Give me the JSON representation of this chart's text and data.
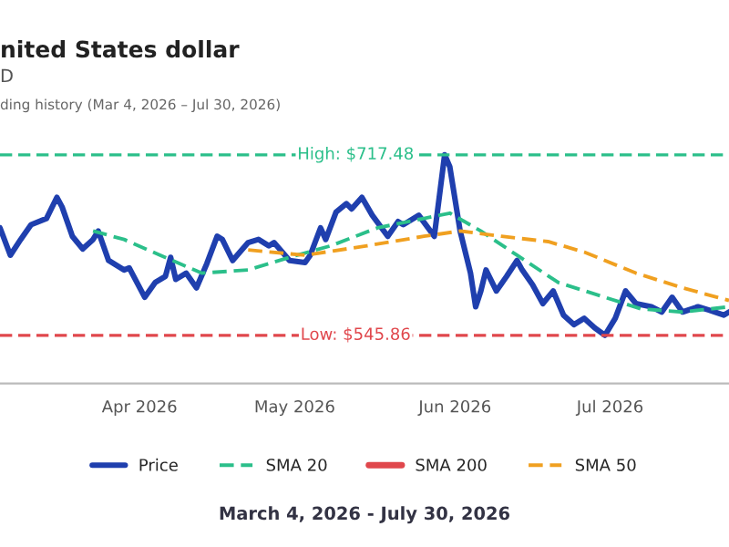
{
  "chart_data": {
    "type": "line",
    "title": "nited States dollar",
    "subtitle": "D",
    "annotations": [
      "ding history (Mar 4, 2026 – Jul 30, 2026)",
      "March 4, 2026 - July 30, 2026"
    ],
    "xlim": [
      "2026-03-05",
      "2026-07-24"
    ],
    "xticks": [
      {
        "value": "2026-04-01",
        "label": "Apr 2026"
      },
      {
        "value": "2026-05-01",
        "label": "May 2026"
      },
      {
        "value": "2026-06-01",
        "label": "Jun 2026"
      },
      {
        "value": "2026-07-01",
        "label": "Jul 2026"
      }
    ],
    "yticks": [
      {
        "value": 545.86,
        "label": "Low: $545.86"
      },
      {
        "value": 717.48,
        "label": "High: $717.48"
      }
    ],
    "ylim": [
      545.86,
      717.48
    ],
    "grid": false,
    "legend": "bottom",
    "line_style": "solid",
    "marker": "none",
    "ref_lines": [
      {
        "axis": "y",
        "value": 717.48,
        "color": "#2bbf8a",
        "line_style": "dashed"
      },
      {
        "axis": "y",
        "value": 545.86,
        "color": "#e0474c",
        "line_style": "dashed"
      }
    ],
    "series": [
      {
        "name": "Price",
        "color": "#1f3fae",
        "x": [
          "2026-03-05",
          "2026-03-07",
          "2026-03-09",
          "2026-03-11",
          "2026-03-14",
          "2026-03-16",
          "2026-03-17",
          "2026-03-19",
          "2026-03-21",
          "2026-03-23",
          "2026-03-24",
          "2026-03-26",
          "2026-03-29",
          "2026-03-30",
          "2026-04-02",
          "2026-04-04",
          "2026-04-06",
          "2026-04-07",
          "2026-04-08",
          "2026-04-10",
          "2026-04-12",
          "2026-04-14",
          "2026-04-16",
          "2026-04-17",
          "2026-04-19",
          "2026-04-22",
          "2026-04-24",
          "2026-04-26",
          "2026-04-27",
          "2026-04-30",
          "2026-05-03",
          "2026-05-04",
          "2026-05-06",
          "2026-05-07",
          "2026-05-09",
          "2026-05-11",
          "2026-05-12",
          "2026-05-14",
          "2026-05-16",
          "2026-05-19",
          "2026-05-21",
          "2026-05-22",
          "2026-05-25",
          "2026-05-28",
          "2026-05-30",
          "2026-05-31",
          "2026-06-02",
          "2026-06-04",
          "2026-06-05",
          "2026-06-06",
          "2026-06-07",
          "2026-06-09",
          "2026-06-11",
          "2026-06-13",
          "2026-06-14",
          "2026-06-16",
          "2026-06-18",
          "2026-06-20",
          "2026-06-22",
          "2026-06-24",
          "2026-06-26",
          "2026-06-28",
          "2026-06-30",
          "2026-07-02",
          "2026-07-04",
          "2026-07-06",
          "2026-07-09",
          "2026-07-11",
          "2026-07-13",
          "2026-07-15",
          "2026-07-18",
          "2026-07-20",
          "2026-07-23",
          "2026-07-24"
        ],
        "values": [
          648,
          622,
          637,
          651,
          657,
          677,
          668,
          640,
          628,
          637,
          645,
          617,
          608,
          610,
          582,
          596,
          602,
          620,
          599,
          605,
          591,
          614,
          640,
          637,
          617,
          634,
          637,
          631,
          634,
          617,
          615,
          622,
          648,
          637,
          663,
          671,
          666,
          677,
          660,
          640,
          654,
          651,
          660,
          640,
          717.48,
          706,
          645,
          605,
          573,
          588,
          608,
          588,
          602,
          617,
          608,
          594,
          576,
          588,
          565,
          556,
          562,
          553,
          545.86,
          562,
          588,
          576,
          573,
          568,
          582,
          568,
          573,
          570,
          565,
          568
        ]
      },
      {
        "name": "SMA 20",
        "color": "#2bbf8a",
        "line_style": "dashed",
        "x": [
          "2026-03-23",
          "2026-03-29",
          "2026-04-05",
          "2026-04-13",
          "2026-04-22",
          "2026-04-30",
          "2026-05-08",
          "2026-05-17",
          "2026-05-26",
          "2026-05-31",
          "2026-06-06",
          "2026-06-13",
          "2026-06-21",
          "2026-06-30",
          "2026-07-07",
          "2026-07-15",
          "2026-07-24"
        ],
        "values": [
          645,
          637,
          622,
          605,
          608,
          620,
          631,
          648,
          657,
          662,
          645,
          622,
          596,
          582,
          571,
          568,
          573
        ]
      },
      {
        "name": "SMA 200",
        "color": "#e0474c"
      },
      {
        "name": "SMA 50",
        "color": "#f0a020",
        "line_style": "dashed",
        "x": [
          "2026-04-22",
          "2026-05-03",
          "2026-05-15",
          "2026-05-26",
          "2026-06-02",
          "2026-06-10",
          "2026-06-19",
          "2026-06-26",
          "2026-07-06",
          "2026-07-15",
          "2026-07-24"
        ],
        "values": [
          627,
          622,
          631,
          640,
          645,
          640,
          635,
          625,
          605,
          591,
          579
        ]
      }
    ]
  }
}
